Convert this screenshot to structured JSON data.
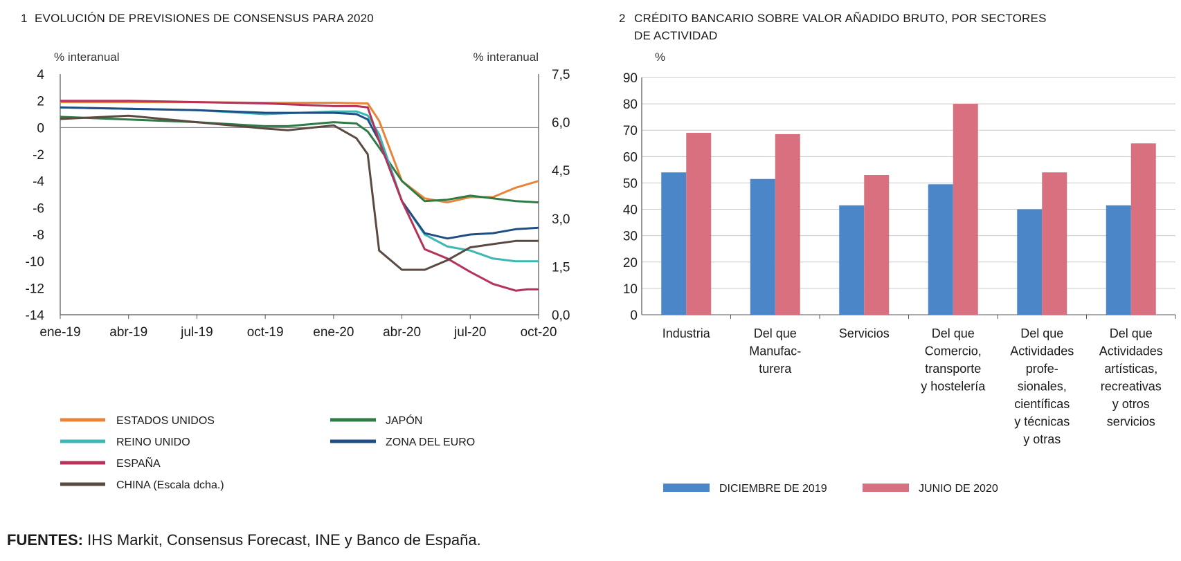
{
  "chart_data": [
    {
      "type": "line",
      "number": "1",
      "title": "EVOLUCIÓN DE PREVISIONES DE CONSENSUS PARA 2020",
      "ylabel_left": "% interanual",
      "ylabel_right": "% interanual",
      "ylim_left": [
        -14,
        4
      ],
      "ylim_right": [
        0,
        7.5
      ],
      "yticks_left": [
        "4",
        "2",
        "0",
        "-2",
        "-4",
        "-6",
        "-8",
        "-10",
        "-12",
        "-14"
      ],
      "yticks_right": [
        "7,5",
        "6,0",
        "4,5",
        "3,0",
        "1,5",
        "0,0"
      ],
      "xlim": [
        0,
        21
      ],
      "xticks": [
        {
          "pos": 0,
          "label": "ene-19"
        },
        {
          "pos": 3,
          "label": "abr-19"
        },
        {
          "pos": 6,
          "label": "jul-19"
        },
        {
          "pos": 9,
          "label": "oct-19"
        },
        {
          "pos": 12,
          "label": "ene-20"
        },
        {
          "pos": 15,
          "label": "abr-20"
        },
        {
          "pos": 18,
          "label": "jul-20"
        },
        {
          "pos": 21,
          "label": "oct-20"
        }
      ],
      "series": [
        {
          "name": "ESTADOS UNIDOS",
          "color": "#e8843a",
          "axis": "left",
          "x": [
            0,
            3,
            6,
            9,
            12,
            13.5,
            14,
            15,
            16,
            17,
            18,
            19,
            20,
            21
          ],
          "y": [
            1.9,
            1.9,
            1.9,
            1.85,
            1.85,
            1.8,
            0.5,
            -4.0,
            -5.3,
            -5.6,
            -5.2,
            -5.2,
            -4.5,
            -4.0
          ]
        },
        {
          "name": "JAPÓN",
          "color": "#2e7b45",
          "axis": "left",
          "x": [
            0,
            3,
            6,
            9,
            10,
            12,
            13,
            13.5,
            14,
            15,
            16,
            17,
            18,
            19,
            20,
            21
          ],
          "y": [
            0.8,
            0.6,
            0.4,
            0.1,
            0.1,
            0.4,
            0.3,
            -0.3,
            -1.5,
            -4.0,
            -5.5,
            -5.4,
            -5.1,
            -5.3,
            -5.5,
            -5.6
          ]
        },
        {
          "name": "REINO UNIDO",
          "color": "#3bb8b4",
          "axis": "left",
          "x": [
            0,
            3,
            6,
            9,
            12,
            13,
            13.5,
            14,
            15,
            16,
            17,
            18,
            19,
            20,
            21
          ],
          "y": [
            1.5,
            1.4,
            1.3,
            1.0,
            1.2,
            1.2,
            0.9,
            -0.5,
            -5.5,
            -8.0,
            -8.9,
            -9.2,
            -9.8,
            -10.0,
            -10.0
          ]
        },
        {
          "name": "ZONA DEL EURO",
          "color": "#1f4e86",
          "axis": "left",
          "x": [
            0,
            3,
            6,
            9,
            12,
            13,
            13.5,
            14,
            15,
            16,
            17,
            18,
            19,
            20,
            21
          ],
          "y": [
            1.5,
            1.4,
            1.3,
            1.1,
            1.1,
            1.0,
            0.6,
            -1.0,
            -5.5,
            -7.9,
            -8.3,
            -8.0,
            -7.9,
            -7.6,
            -7.5
          ]
        },
        {
          "name": "ESPAÑA",
          "color": "#b5335a",
          "axis": "left",
          "x": [
            0,
            3,
            6,
            9,
            12,
            13,
            13.5,
            14,
            15,
            16,
            17,
            18,
            19,
            20,
            20.5,
            21
          ],
          "y": [
            2.0,
            2.0,
            1.9,
            1.8,
            1.6,
            1.6,
            1.5,
            -1.0,
            -5.5,
            -9.1,
            -9.8,
            -10.8,
            -11.7,
            -12.2,
            -12.1,
            -12.1
          ]
        },
        {
          "name": "CHINA (Escala dcha.)",
          "color": "#5b4a42",
          "axis": "right",
          "x": [
            0,
            3,
            6,
            9,
            10,
            12,
            13,
            13.5,
            14,
            15,
            16,
            17,
            18,
            19,
            20,
            21
          ],
          "y": [
            6.1,
            6.2,
            6.0,
            5.8,
            5.75,
            5.9,
            5.5,
            5.0,
            2.0,
            1.4,
            1.4,
            1.7,
            2.1,
            2.2,
            2.3,
            2.3
          ]
        }
      ],
      "legend": {
        "left": [
          "ESTADOS UNIDOS",
          "REINO UNIDO",
          "ESPAÑA",
          "CHINA (Escala dcha.)"
        ],
        "right": [
          "JAPÓN",
          "ZONA DEL EURO"
        ]
      }
    },
    {
      "type": "bar",
      "number": "2",
      "title_line1": "CRÉDITO BANCARIO SOBRE VALOR AÑADIDO BRUTO, POR SECTORES",
      "title_line2": "DE ACTIVIDAD",
      "ylabel": "%",
      "ylim": [
        0,
        90
      ],
      "yticks": [
        "90",
        "80",
        "70",
        "60",
        "50",
        "40",
        "30",
        "20",
        "10",
        "0"
      ],
      "categories": [
        [
          "Industria"
        ],
        [
          "Del que",
          "Manufac-",
          "turera"
        ],
        [
          "Servicios"
        ],
        [
          "Del que",
          "Comercio,",
          "transporte",
          "y hostelería"
        ],
        [
          "Del que",
          "Actividades",
          "profe-",
          "sionales,",
          "científicas",
          "y técnicas",
          "y otras"
        ],
        [
          "Del que",
          "Actividades",
          "artísticas,",
          "recreativas",
          "y otros",
          "servicios"
        ]
      ],
      "series": [
        {
          "name": "DICIEMBRE DE 2019",
          "color": "#4a86c8",
          "values": [
            54,
            51.5,
            41.5,
            49.5,
            40,
            41.5
          ]
        },
        {
          "name": "JUNIO DE 2020",
          "color": "#d9707f",
          "values": [
            69,
            68.5,
            53,
            80,
            54,
            65
          ]
        }
      ]
    }
  ],
  "source": {
    "label": "FUENTES:",
    "text": " IHS Markit, Consensus Forecast, INE y Banco de España."
  }
}
